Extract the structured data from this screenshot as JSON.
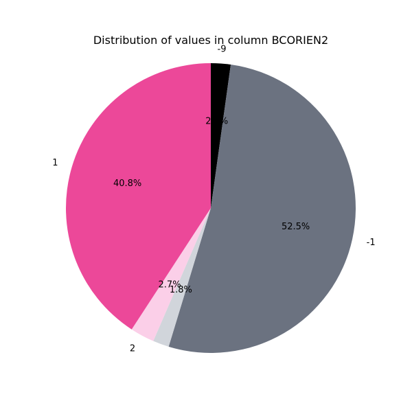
{
  "chart_data": {
    "type": "pie",
    "title": "Distribution of values in column BCORIEN2",
    "slices": [
      {
        "label": "-9",
        "value": 2.2,
        "pct_label": "2.2%",
        "color": "#000000"
      },
      {
        "label": "-1",
        "value": 52.5,
        "pct_label": "52.5%",
        "color": "#6b7280"
      },
      {
        "label": "",
        "value": 1.8,
        "pct_label": "1.8%",
        "color": "#d1d5db"
      },
      {
        "label": "2",
        "value": 2.7,
        "pct_label": "2.7%",
        "color": "#fbcfe8"
      },
      {
        "label": "1",
        "value": 40.8,
        "pct_label": "40.8%",
        "color": "#ec4899"
      }
    ],
    "start_angle_deg": 90,
    "direction": "clockwise",
    "legend": "none"
  }
}
